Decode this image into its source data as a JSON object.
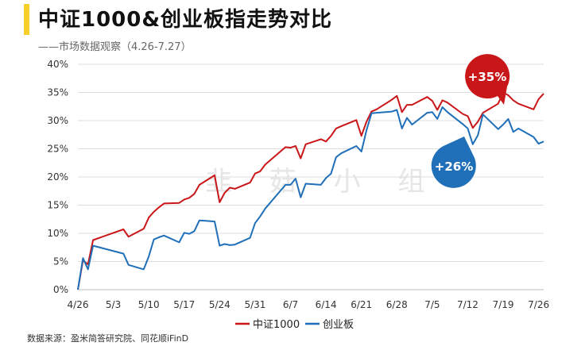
{
  "header": {
    "title": "中证1000&创业板指走势对比",
    "subtitle": "——市场数据观察（4.26-7.27）"
  },
  "source": "数据来源：盈米简答研究院、同花顺iFinD",
  "watermark": "韭 菇 小 组",
  "colors": {
    "accent": "#f6cf2b",
    "csi1000": "#c91619",
    "chinext": "#1f6fb9",
    "grid": "#dddddd"
  },
  "chart_data": {
    "type": "line",
    "x_ticks": [
      "4/26",
      "5/3",
      "5/10",
      "5/17",
      "5/24",
      "5/31",
      "6/7",
      "6/14",
      "6/21",
      "6/28",
      "7/5",
      "7/12",
      "7/19",
      "7/26"
    ],
    "y_ticks": [
      "0%",
      "5%",
      "10%",
      "15%",
      "20%",
      "25%",
      "30%",
      "35%",
      "40%"
    ],
    "ylim": [
      0,
      40
    ],
    "legend_position": "bottom-center",
    "grid": "horizontal",
    "annotations": [
      {
        "label": "+35%",
        "series": "中证1000",
        "shape": "pin"
      },
      {
        "label": "+26%",
        "series": "创业板",
        "shape": "drop"
      }
    ],
    "series": [
      {
        "name": "中证1000",
        "color": "#c91619",
        "points": [
          [
            "4/26",
            0
          ],
          [
            "4/27",
            5.2
          ],
          [
            "4/28",
            4.5
          ],
          [
            "4/29",
            8.8
          ],
          [
            "5/5",
            10.7
          ],
          [
            "5/6",
            9.4
          ],
          [
            "5/9",
            10.8
          ],
          [
            "5/10",
            12.8
          ],
          [
            "5/11",
            13.8
          ],
          [
            "5/12",
            14.6
          ],
          [
            "5/13",
            15.3
          ],
          [
            "5/16",
            15.4
          ],
          [
            "5/17",
            16.0
          ],
          [
            "5/18",
            16.3
          ],
          [
            "5/19",
            17.0
          ],
          [
            "5/20",
            18.6
          ],
          [
            "5/23",
            20.3
          ],
          [
            "5/24",
            15.5
          ],
          [
            "5/25",
            17.2
          ],
          [
            "5/26",
            18.1
          ],
          [
            "5/27",
            17.9
          ],
          [
            "5/30",
            19.0
          ],
          [
            "5/31",
            20.6
          ],
          [
            "6/1",
            21.0
          ],
          [
            "6/2",
            22.2
          ],
          [
            "6/6",
            25.3
          ],
          [
            "6/7",
            25.2
          ],
          [
            "6/8",
            25.5
          ],
          [
            "6/9",
            23.3
          ],
          [
            "6/10",
            25.8
          ],
          [
            "6/13",
            26.7
          ],
          [
            "6/14",
            26.3
          ],
          [
            "6/15",
            27.3
          ],
          [
            "6/16",
            28.6
          ],
          [
            "6/17",
            29.0
          ],
          [
            "6/20",
            30.1
          ],
          [
            "6/21",
            27.3
          ],
          [
            "6/22",
            29.8
          ],
          [
            "6/23",
            31.6
          ],
          [
            "6/24",
            32.0
          ],
          [
            "6/27",
            33.7
          ],
          [
            "6/28",
            34.4
          ],
          [
            "6/29",
            31.5
          ],
          [
            "6/30",
            32.8
          ],
          [
            "7/1",
            32.8
          ],
          [
            "7/4",
            34.2
          ],
          [
            "7/5",
            33.5
          ],
          [
            "7/6",
            31.9
          ],
          [
            "7/7",
            33.6
          ],
          [
            "7/8",
            33.2
          ],
          [
            "7/11",
            31.2
          ],
          [
            "7/12",
            30.8
          ],
          [
            "7/13",
            28.7
          ],
          [
            "7/14",
            29.8
          ],
          [
            "7/15",
            31.4
          ],
          [
            "7/18",
            33.0
          ],
          [
            "7/19",
            35.0
          ],
          [
            "7/20",
            34.5
          ],
          [
            "7/21",
            33.6
          ],
          [
            "7/22",
            33.0
          ],
          [
            "7/25",
            32.0
          ],
          [
            "7/26",
            33.8
          ],
          [
            "7/27",
            34.8
          ]
        ]
      },
      {
        "name": "创业板",
        "color": "#1f6fb9",
        "points": [
          [
            "4/26",
            0
          ],
          [
            "4/27",
            5.6
          ],
          [
            "4/28",
            3.6
          ],
          [
            "4/29",
            7.8
          ],
          [
            "5/5",
            6.4
          ],
          [
            "5/6",
            4.4
          ],
          [
            "5/9",
            3.6
          ],
          [
            "5/10",
            5.9
          ],
          [
            "5/11",
            8.9
          ],
          [
            "5/12",
            9.3
          ],
          [
            "5/13",
            9.6
          ],
          [
            "5/16",
            8.4
          ],
          [
            "5/17",
            10.1
          ],
          [
            "5/18",
            9.9
          ],
          [
            "5/19",
            10.4
          ],
          [
            "5/20",
            12.3
          ],
          [
            "5/23",
            12.1
          ],
          [
            "5/24",
            7.8
          ],
          [
            "5/25",
            8.1
          ],
          [
            "5/26",
            7.9
          ],
          [
            "5/27",
            8.0
          ],
          [
            "5/30",
            9.2
          ],
          [
            "5/31",
            11.8
          ],
          [
            "6/1",
            13.0
          ],
          [
            "6/2",
            14.4
          ],
          [
            "6/6",
            18.6
          ],
          [
            "6/7",
            18.6
          ],
          [
            "6/8",
            19.7
          ],
          [
            "6/9",
            16.4
          ],
          [
            "6/10",
            18.8
          ],
          [
            "6/13",
            18.6
          ],
          [
            "6/14",
            19.8
          ],
          [
            "6/15",
            20.6
          ],
          [
            "6/16",
            23.5
          ],
          [
            "6/17",
            24.2
          ],
          [
            "6/20",
            25.5
          ],
          [
            "6/21",
            24.5
          ],
          [
            "6/22",
            28.3
          ],
          [
            "6/23",
            31.3
          ],
          [
            "6/24",
            31.4
          ],
          [
            "6/27",
            31.6
          ],
          [
            "6/28",
            31.9
          ],
          [
            "6/29",
            28.6
          ],
          [
            "6/30",
            30.5
          ],
          [
            "7/1",
            29.3
          ],
          [
            "7/4",
            31.4
          ],
          [
            "7/5",
            31.5
          ],
          [
            "7/6",
            30.3
          ],
          [
            "7/7",
            32.4
          ],
          [
            "7/8",
            31.5
          ],
          [
            "7/11",
            29.4
          ],
          [
            "7/12",
            28.6
          ],
          [
            "7/13",
            25.8
          ],
          [
            "7/14",
            27.4
          ],
          [
            "7/15",
            31.1
          ],
          [
            "7/18",
            28.5
          ],
          [
            "7/19",
            29.3
          ],
          [
            "7/20",
            30.3
          ],
          [
            "7/21",
            28.0
          ],
          [
            "7/22",
            28.6
          ],
          [
            "7/25",
            27.1
          ],
          [
            "7/26",
            25.9
          ],
          [
            "7/27",
            26.3
          ]
        ]
      }
    ]
  }
}
